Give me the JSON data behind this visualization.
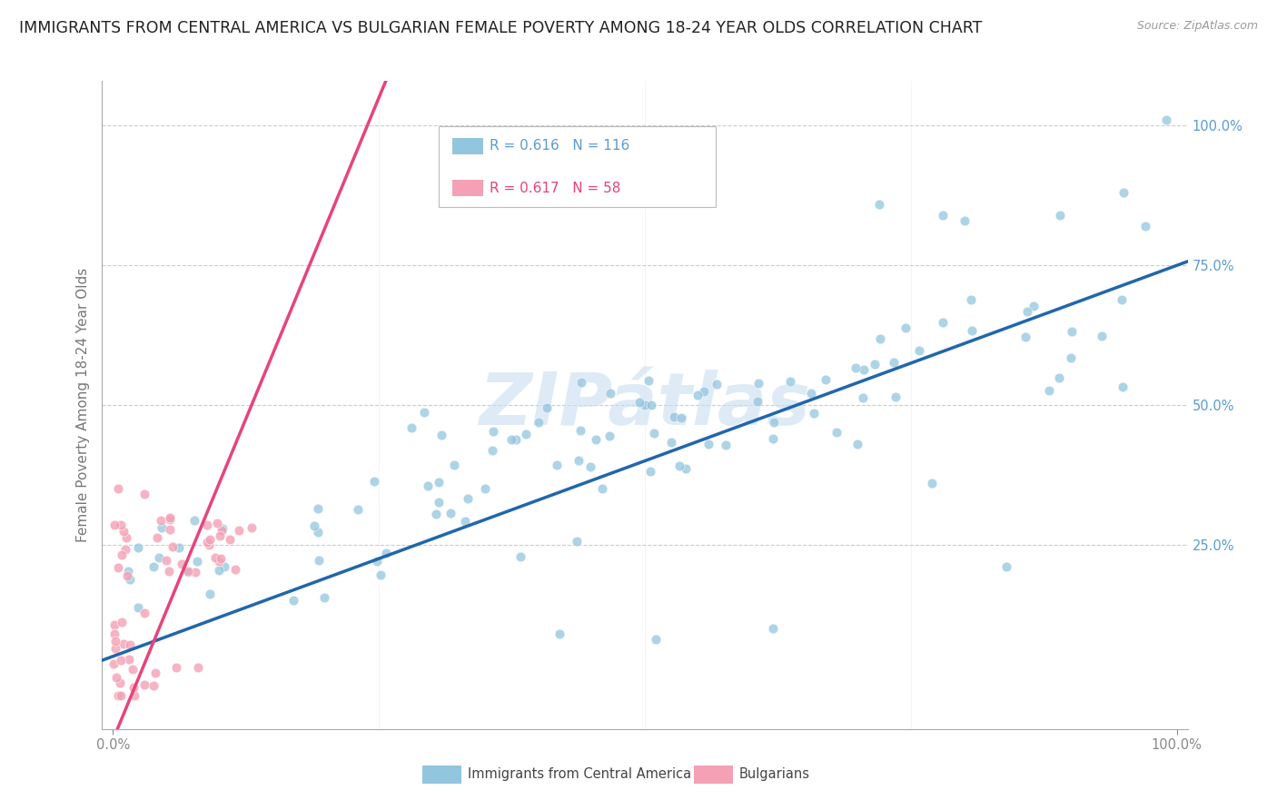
{
  "title": "IMMIGRANTS FROM CENTRAL AMERICA VS BULGARIAN FEMALE POVERTY AMONG 18-24 YEAR OLDS CORRELATION CHART",
  "source": "Source: ZipAtlas.com",
  "ylabel": "Female Poverty Among 18-24 Year Olds",
  "blue_color": "#92c5de",
  "pink_color": "#f4a0b5",
  "blue_line_color": "#2166ac",
  "pink_line_color": "#e8437a",
  "legend_r_blue": "R = 0.616",
  "legend_n_blue": "N = 116",
  "legend_r_pink": "R = 0.617",
  "legend_n_pink": "N = 58",
  "legend_label_blue": "Immigrants from Central America",
  "legend_label_pink": "Bulgarians",
  "title_fontsize": 12.5,
  "axis_label_fontsize": 11,
  "tick_fontsize": 10.5,
  "background_color": "#ffffff",
  "grid_color": "#cccccc",
  "watermark_color": "#c8dff0"
}
